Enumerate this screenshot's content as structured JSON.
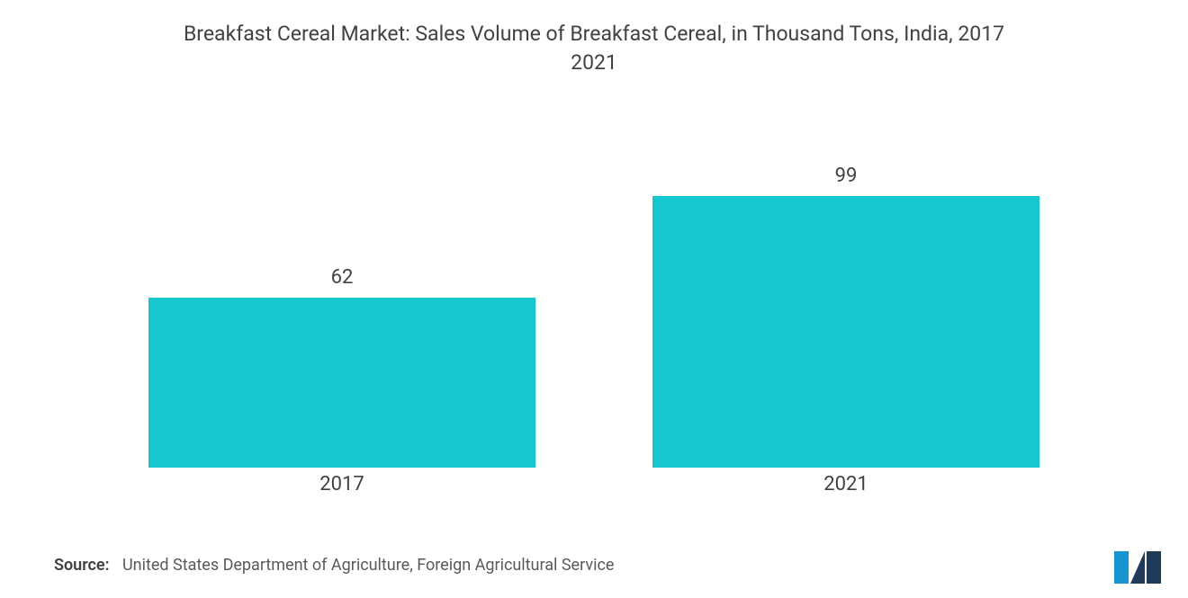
{
  "title_line1": "Breakfast Cereal Market: Sales Volume of Breakfast Cereal, in Thousand Tons, India, 2017",
  "title_line2": "2021",
  "chart": {
    "type": "bar",
    "categories": [
      "2017",
      "2021"
    ],
    "values": [
      62,
      99
    ],
    "value_labels": [
      "62",
      "99"
    ],
    "bar_color": "#14c8cd",
    "background_color": "#ffffff",
    "ymax": 105,
    "title_color": "#424242",
    "title_fontsize": 23,
    "axis_label_color": "#424242",
    "axis_label_fontsize": 22,
    "value_label_color": "#424242",
    "value_label_fontsize": 22,
    "bar_width_ratio": 0.82
  },
  "source_label": "Source:",
  "source_text": "United States Department of Agriculture, Foreign Agricultural Service",
  "logo": {
    "primary_color": "#1794d2",
    "secondary_color": "#203a5c"
  }
}
